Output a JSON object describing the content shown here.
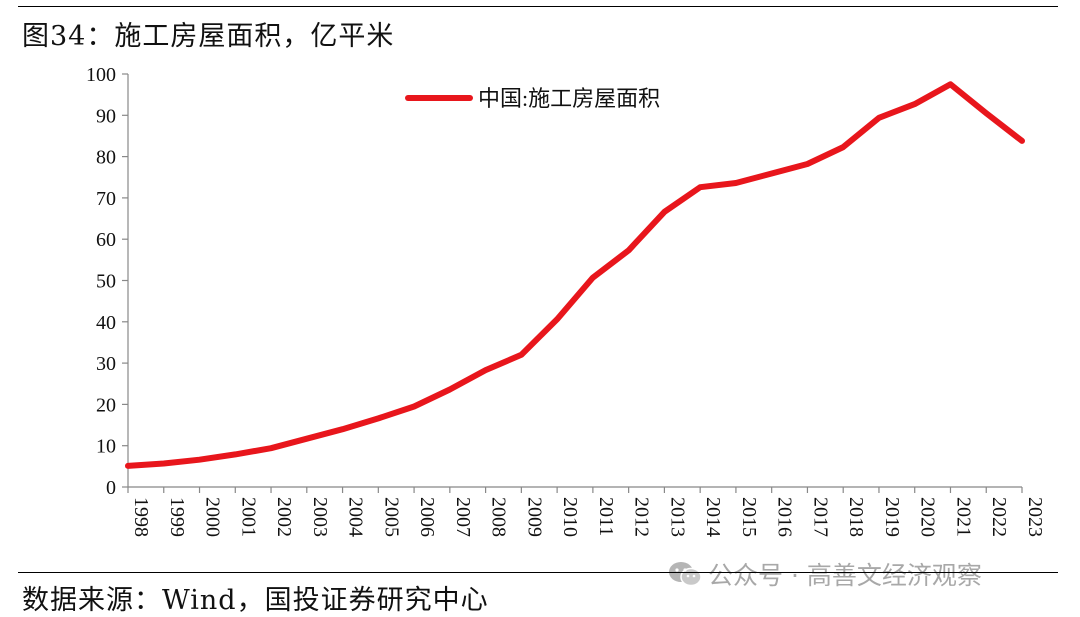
{
  "figure": {
    "title": "图34：施工房屋面积，亿平米",
    "source": "数据来源：Wind，国投证券研究中心",
    "watermark": "公众号 · 高善文经济观察",
    "watermark_icon": "wechat-icon"
  },
  "chart_data": {
    "type": "line",
    "x": [
      "1998",
      "1999",
      "2000",
      "2001",
      "2002",
      "2003",
      "2004",
      "2005",
      "2006",
      "2007",
      "2008",
      "2009",
      "2010",
      "2011",
      "2012",
      "2013",
      "2014",
      "2015",
      "2016",
      "2017",
      "2018",
      "2019",
      "2020",
      "2021",
      "2022",
      "2023"
    ],
    "series": [
      {
        "name": "中国:施工房屋面积",
        "color": "#e8161c",
        "values": [
          5.1,
          5.7,
          6.6,
          7.9,
          9.4,
          11.7,
          14.0,
          16.6,
          19.5,
          23.6,
          28.3,
          32.0,
          40.6,
          50.7,
          57.3,
          66.6,
          72.6,
          73.6,
          75.9,
          78.2,
          82.3,
          89.4,
          92.7,
          97.5,
          90.5,
          83.8
        ]
      }
    ],
    "ylim": [
      0,
      100
    ],
    "yticks": [
      0,
      10,
      20,
      30,
      40,
      50,
      60,
      70,
      80,
      90,
      100
    ],
    "grid": false,
    "legend": "top-center"
  }
}
